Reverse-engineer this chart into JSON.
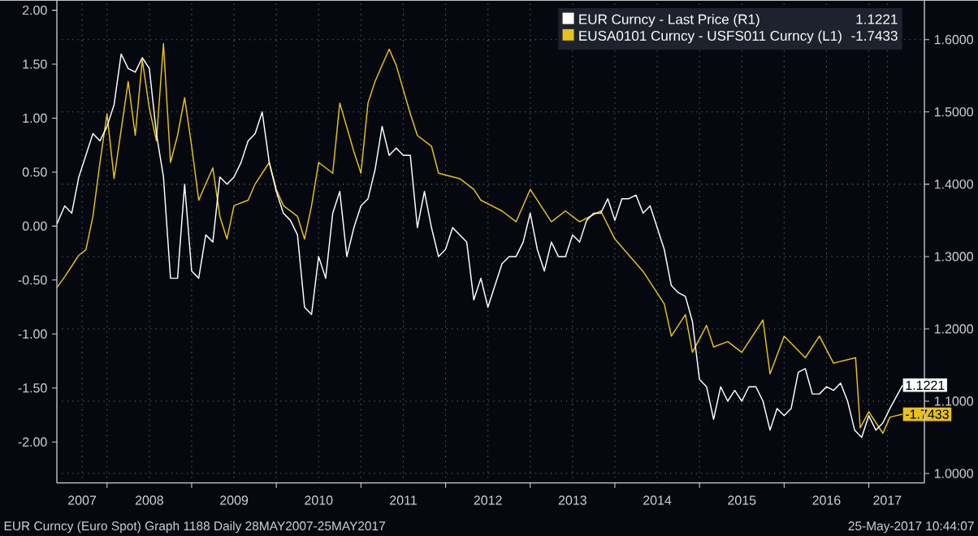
{
  "chart_data": {
    "type": "line",
    "xlim": [
      "2007-05-28",
      "2017-08-28"
    ],
    "xticks": [
      {
        "value": "2007-09-15",
        "label": "2007"
      },
      {
        "value": "2008-01-01",
        "label": null
      },
      {
        "value": "2008-07-01",
        "label": "2008"
      },
      {
        "value": "2009-01-01",
        "label": null
      },
      {
        "value": "2009-07-01",
        "label": "2009"
      },
      {
        "value": "2010-01-01",
        "label": null
      },
      {
        "value": "2010-07-01",
        "label": "2010"
      },
      {
        "value": "2011-01-01",
        "label": null
      },
      {
        "value": "2011-07-01",
        "label": "2011"
      },
      {
        "value": "2012-01-01",
        "label": null
      },
      {
        "value": "2012-07-01",
        "label": "2012"
      },
      {
        "value": "2013-01-01",
        "label": null
      },
      {
        "value": "2013-07-01",
        "label": "2013"
      },
      {
        "value": "2014-01-01",
        "label": null
      },
      {
        "value": "2014-07-01",
        "label": "2014"
      },
      {
        "value": "2015-01-01",
        "label": null
      },
      {
        "value": "2015-07-01",
        "label": "2015"
      },
      {
        "value": "2016-01-01",
        "label": null
      },
      {
        "value": "2016-07-01",
        "label": "2016"
      },
      {
        "value": "2017-01-01",
        "label": null
      },
      {
        "value": "2017-03-20",
        "label": "2017"
      }
    ],
    "ylim": [
      -2.38,
      2.09
    ],
    "yticks": [
      {
        "value": -2,
        "label": "-2.00"
      },
      {
        "value": -1.5,
        "label": "-1.50"
      },
      {
        "value": -1,
        "label": "-1.00"
      },
      {
        "value": -0.5,
        "label": "-0.50"
      },
      {
        "value": 0,
        "label": "0.00"
      },
      {
        "value": 0.5,
        "label": "0.50"
      },
      {
        "value": 1,
        "label": "1.00"
      },
      {
        "value": 1.5,
        "label": "1.50"
      },
      {
        "value": 2,
        "label": "2.00"
      }
    ],
    "y2lim": [
      0.987,
      1.654
    ],
    "y2ticks": [
      {
        "value": 1.0,
        "label": "1.0000"
      },
      {
        "value": 1.1,
        "label": "1.1000"
      },
      {
        "value": 1.2,
        "label": "1.2000"
      },
      {
        "value": 1.3,
        "label": "1.3000"
      },
      {
        "value": 1.4,
        "label": "1.4000"
      },
      {
        "value": 1.5,
        "label": "1.5000"
      },
      {
        "value": 1.6,
        "label": "1.6000"
      }
    ],
    "grid": true,
    "legend": "top right",
    "annotations": [
      "EUR Curncy (Euro Spot) Graph 1188  Daily 28MAY2007-25MAY2017",
      "25-May-2017 10:44:07"
    ],
    "series": [
      {
        "name": "EUR Curncy - Last Price (R1)",
        "color": "#ffffff",
        "axis": "y2",
        "x": [
          "2007-05-28",
          "2007-07",
          "2007-08",
          "2007-09",
          "2007-10",
          "2007-11",
          "2007-12",
          "2008-01",
          "2008-02",
          "2008-03",
          "2008-04",
          "2008-05",
          "2008-06",
          "2008-07",
          "2008-08",
          "2008-09",
          "2008-10",
          "2008-11",
          "2008-12",
          "2009-01",
          "2009-02",
          "2009-03",
          "2009-04",
          "2009-05",
          "2009-06",
          "2009-07",
          "2009-08",
          "2009-09",
          "2009-10",
          "2009-11",
          "2009-12",
          "2010-01",
          "2010-02",
          "2010-03",
          "2010-04",
          "2010-05",
          "2010-06",
          "2010-07",
          "2010-08",
          "2010-09",
          "2010-10",
          "2010-11",
          "2010-12",
          "2011-01",
          "2011-02",
          "2011-03",
          "2011-04",
          "2011-05",
          "2011-06",
          "2011-07",
          "2011-08",
          "2011-09",
          "2011-10",
          "2011-11",
          "2011-12",
          "2012-01",
          "2012-02",
          "2012-03",
          "2012-04",
          "2012-05",
          "2012-06",
          "2012-07",
          "2012-08",
          "2012-09",
          "2012-10",
          "2012-11",
          "2012-12",
          "2013-01",
          "2013-02",
          "2013-03",
          "2013-04",
          "2013-05",
          "2013-06",
          "2013-07",
          "2013-08",
          "2013-09",
          "2013-10",
          "2013-11",
          "2013-12",
          "2014-01",
          "2014-02",
          "2014-03",
          "2014-04",
          "2014-05",
          "2014-06",
          "2014-07",
          "2014-08",
          "2014-09",
          "2014-10",
          "2014-11",
          "2014-12",
          "2015-01",
          "2015-02",
          "2015-03",
          "2015-04",
          "2015-05",
          "2015-06",
          "2015-07",
          "2015-08",
          "2015-09",
          "2015-10",
          "2015-11",
          "2015-12",
          "2016-01",
          "2016-02",
          "2016-03",
          "2016-04",
          "2016-05",
          "2016-06",
          "2016-07",
          "2016-08",
          "2016-09",
          "2016-10",
          "2016-11",
          "2016-12",
          "2017-01",
          "2017-02",
          "2017-03",
          "2017-04",
          "2017-05-25"
        ],
        "values": [
          1.345,
          1.37,
          1.36,
          1.41,
          1.44,
          1.47,
          1.46,
          1.48,
          1.51,
          1.58,
          1.56,
          1.555,
          1.575,
          1.56,
          1.47,
          1.41,
          1.27,
          1.27,
          1.4,
          1.28,
          1.27,
          1.33,
          1.32,
          1.41,
          1.4,
          1.41,
          1.43,
          1.46,
          1.47,
          1.5,
          1.43,
          1.39,
          1.36,
          1.35,
          1.33,
          1.23,
          1.22,
          1.3,
          1.27,
          1.36,
          1.39,
          1.3,
          1.34,
          1.37,
          1.38,
          1.42,
          1.48,
          1.44,
          1.45,
          1.44,
          1.44,
          1.34,
          1.39,
          1.34,
          1.3,
          1.31,
          1.34,
          1.33,
          1.32,
          1.24,
          1.27,
          1.23,
          1.26,
          1.29,
          1.3,
          1.3,
          1.32,
          1.36,
          1.31,
          1.28,
          1.32,
          1.3,
          1.3,
          1.33,
          1.32,
          1.35,
          1.36,
          1.36,
          1.38,
          1.35,
          1.38,
          1.38,
          1.385,
          1.36,
          1.37,
          1.34,
          1.31,
          1.26,
          1.25,
          1.245,
          1.21,
          1.13,
          1.12,
          1.075,
          1.12,
          1.1,
          1.115,
          1.1,
          1.12,
          1.12,
          1.1,
          1.06,
          1.09,
          1.08,
          1.09,
          1.14,
          1.145,
          1.11,
          1.11,
          1.12,
          1.115,
          1.125,
          1.1,
          1.06,
          1.05,
          1.08,
          1.06,
          1.07,
          1.09,
          1.1221
        ],
        "value_labels": [
          null,
          null,
          null,
          null,
          null,
          null,
          null,
          null,
          null,
          null,
          null,
          null,
          null,
          null,
          null,
          null,
          null,
          null,
          null,
          null,
          null,
          null,
          null,
          null,
          null,
          null,
          null,
          null,
          null,
          null,
          null,
          null,
          null,
          null,
          null,
          null,
          null,
          null,
          null,
          null,
          null,
          null,
          null,
          null,
          null,
          null,
          null,
          null,
          null,
          null,
          null,
          null,
          null,
          null,
          null,
          null,
          null,
          null,
          null,
          null,
          null,
          null,
          null,
          null,
          null,
          null,
          null,
          null,
          null,
          null,
          null,
          null,
          null,
          null,
          null,
          null,
          null,
          null,
          null,
          null,
          null,
          null,
          null,
          null,
          null,
          null,
          null,
          null,
          null,
          null,
          null,
          null,
          null,
          null,
          null,
          null,
          null,
          null,
          null,
          null,
          null,
          null,
          null,
          null,
          null,
          null,
          null,
          null,
          null,
          null,
          null,
          null,
          null,
          null,
          null,
          null,
          null,
          null,
          null,
          "1.1221"
        ]
      },
      {
        "name": "EUSA0101 Curncy - USFS011 Curncy (L1)",
        "color": "#e8c21a",
        "axis": "y",
        "x": [
          "2007-05-28",
          "2007-07",
          "2007-09",
          "2007-10",
          "2007-11",
          "2007-12",
          "2008-01",
          "2008-02",
          "2008-04",
          "2008-05",
          "2008-06",
          "2008-07",
          "2008-08",
          "2008-09",
          "2008-10",
          "2008-11",
          "2008-12",
          "2009-01",
          "2009-02",
          "2009-04",
          "2009-05",
          "2009-06",
          "2009-07",
          "2009-09",
          "2009-10",
          "2009-12",
          "2010-01",
          "2010-02",
          "2010-04",
          "2010-05",
          "2010-06",
          "2010-07",
          "2010-09",
          "2010-10",
          "2010-12",
          "2011-01",
          "2011-02",
          "2011-03",
          "2011-05",
          "2011-06",
          "2011-08",
          "2011-09",
          "2011-11",
          "2011-12",
          "2012-03",
          "2012-05",
          "2012-06",
          "2012-09",
          "2012-11",
          "2013-01",
          "2013-04",
          "2013-06",
          "2013-08",
          "2013-11",
          "2014-01",
          "2014-03",
          "2014-05",
          "2014-08",
          "2014-09",
          "2014-11",
          "2014-12",
          "2015-02",
          "2015-03",
          "2015-05",
          "2015-07",
          "2015-10",
          "2015-11",
          "2016-01",
          "2016-04",
          "2016-06",
          "2016-08",
          "2016-11-05",
          "2016-11-25",
          "2017-01",
          "2017-03",
          "2017-04",
          "2017-05-25"
        ],
        "values": [
          -0.57,
          -0.47,
          -0.27,
          -0.22,
          0.09,
          0.59,
          1.04,
          0.44,
          1.34,
          0.84,
          1.54,
          1.09,
          0.79,
          1.69,
          0.59,
          0.84,
          1.19,
          0.74,
          0.24,
          0.54,
          0.09,
          -0.12,
          0.19,
          0.24,
          0.39,
          0.59,
          0.34,
          0.19,
          0.09,
          -0.12,
          0.19,
          0.59,
          0.49,
          1.14,
          0.69,
          0.49,
          1.14,
          1.34,
          1.64,
          1.49,
          1.04,
          0.84,
          0.74,
          0.49,
          0.44,
          0.34,
          0.24,
          0.14,
          0.04,
          0.34,
          0.04,
          0.14,
          0.04,
          0.14,
          -0.12,
          -0.27,
          -0.42,
          -0.72,
          -1.02,
          -0.82,
          -1.17,
          -0.92,
          -1.12,
          -1.07,
          -1.17,
          -0.87,
          -1.37,
          -1.02,
          -1.22,
          -1.02,
          -1.27,
          -1.22,
          -1.87,
          -1.72,
          -1.92,
          -1.77,
          -1.7433
        ],
        "value_labels": [
          null,
          null,
          null,
          null,
          null,
          null,
          null,
          null,
          null,
          null,
          null,
          null,
          null,
          null,
          null,
          null,
          null,
          null,
          null,
          null,
          null,
          null,
          null,
          null,
          null,
          null,
          null,
          null,
          null,
          null,
          null,
          null,
          null,
          null,
          null,
          null,
          null,
          null,
          null,
          null,
          null,
          null,
          null,
          null,
          null,
          null,
          null,
          null,
          null,
          null,
          null,
          null,
          null,
          null,
          null,
          null,
          null,
          null,
          null,
          null,
          null,
          null,
          null,
          null,
          null,
          null,
          null,
          null,
          null,
          null,
          null,
          null,
          null,
          null,
          null,
          null,
          "-1.7433"
        ]
      }
    ]
  }
}
